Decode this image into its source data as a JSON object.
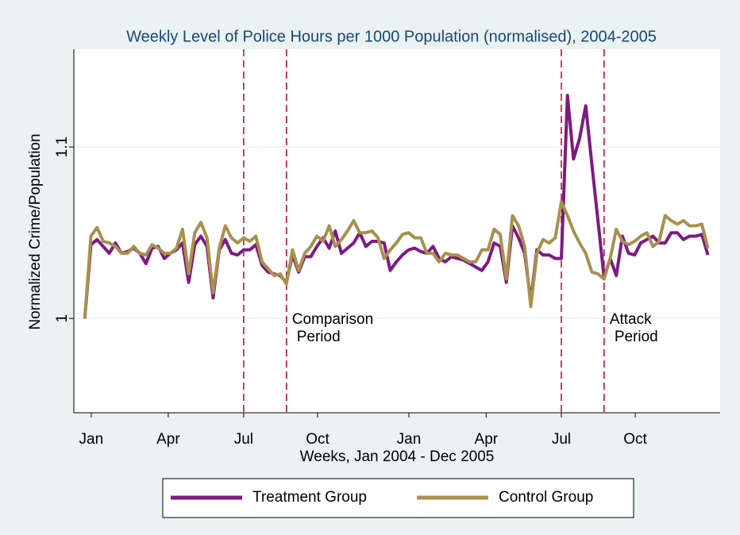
{
  "chart_data": {
    "type": "line",
    "title": "Weekly Level of Police Hours per 1000 Population (normalised), 2004-2005",
    "x_label": "Weeks, Jan 2004 - Dec 2005",
    "y_label": "Normalized Crime/Population",
    "x": [
      1,
      2,
      3,
      4,
      5,
      6,
      7,
      8,
      9,
      10,
      11,
      12,
      13,
      14,
      15,
      16,
      17,
      18,
      19,
      20,
      21,
      22,
      23,
      24,
      25,
      26,
      27,
      28,
      29,
      30,
      31,
      32,
      33,
      34,
      35,
      36,
      37,
      38,
      39,
      40,
      41,
      42,
      43,
      44,
      45,
      46,
      47,
      48,
      49,
      50,
      51,
      52,
      53,
      54,
      55,
      56,
      57,
      58,
      59,
      60,
      61,
      62,
      63,
      64,
      65,
      66,
      67,
      68,
      69,
      70,
      71,
      72,
      73,
      74,
      75,
      76,
      77,
      78,
      79,
      80,
      81,
      82,
      83,
      84,
      85,
      86,
      87,
      88,
      89,
      90,
      91,
      92,
      93,
      94,
      95,
      96,
      97,
      98,
      99,
      100,
      101,
      102,
      103
    ],
    "series": [
      {
        "name": "Treatment Group",
        "color": "#7d1a82",
        "values": [
          1.0,
          1.043,
          1.046,
          1.042,
          1.038,
          1.044,
          1.038,
          1.039,
          1.041,
          1.038,
          1.032,
          1.041,
          1.042,
          1.035,
          1.038,
          1.04,
          1.044,
          1.021,
          1.043,
          1.048,
          1.042,
          1.012,
          1.04,
          1.046,
          1.038,
          1.037,
          1.04,
          1.04,
          1.043,
          1.031,
          1.027,
          1.026,
          1.025,
          1.021,
          1.037,
          1.027,
          1.036,
          1.036,
          1.042,
          1.047,
          1.041,
          1.051,
          1.038,
          1.041,
          1.044,
          1.05,
          1.042,
          1.045,
          1.045,
          1.044,
          1.028,
          1.033,
          1.037,
          1.04,
          1.041,
          1.039,
          1.038,
          1.042,
          1.035,
          1.033,
          1.036,
          1.035,
          1.034,
          1.032,
          1.03,
          1.028,
          1.033,
          1.044,
          1.042,
          1.021,
          1.054,
          1.047,
          1.038,
          1.01,
          1.04,
          1.037,
          1.037,
          1.035,
          1.035,
          1.13,
          1.093,
          1.105,
          1.124,
          1.09,
          1.057,
          1.024,
          1.035,
          1.025,
          1.048,
          1.038,
          1.037,
          1.044,
          1.046,
          1.048,
          1.044,
          1.044,
          1.05,
          1.05,
          1.046,
          1.048,
          1.048,
          1.049,
          1.037
        ]
      },
      {
        "name": "Control Group",
        "color": "#a8914e",
        "values": [
          1.0,
          1.048,
          1.053,
          1.045,
          1.044,
          1.042,
          1.038,
          1.038,
          1.042,
          1.038,
          1.037,
          1.043,
          1.041,
          1.038,
          1.038,
          1.041,
          1.052,
          1.026,
          1.05,
          1.056,
          1.047,
          1.015,
          1.041,
          1.054,
          1.047,
          1.044,
          1.047,
          1.045,
          1.048,
          1.033,
          1.029,
          1.025,
          1.026,
          1.02,
          1.04,
          1.028,
          1.038,
          1.042,
          1.048,
          1.045,
          1.054,
          1.042,
          1.046,
          1.051,
          1.057,
          1.05,
          1.05,
          1.051,
          1.047,
          1.035,
          1.04,
          1.044,
          1.049,
          1.05,
          1.047,
          1.047,
          1.038,
          1.038,
          1.033,
          1.038,
          1.037,
          1.037,
          1.035,
          1.033,
          1.033,
          1.04,
          1.04,
          1.052,
          1.049,
          1.023,
          1.06,
          1.054,
          1.042,
          1.007,
          1.038,
          1.046,
          1.044,
          1.047,
          1.068,
          1.06,
          1.051,
          1.044,
          1.038,
          1.027,
          1.026,
          1.023,
          1.035,
          1.052,
          1.045,
          1.043,
          1.045,
          1.048,
          1.05,
          1.042,
          1.045,
          1.06,
          1.057,
          1.055,
          1.057,
          1.054,
          1.054,
          1.055,
          1.041
        ]
      }
    ],
    "xlim": [
      -0.8,
      105
    ],
    "ylim": [
      0.945,
      1.157
    ],
    "xticks": [
      {
        "value": 2.04,
        "label": "Jan"
      },
      {
        "value": 14.65,
        "label": "Apr"
      },
      {
        "value": 27,
        "label": "Jul"
      },
      {
        "value": 39.1,
        "label": "Oct"
      },
      {
        "value": 54.05,
        "label": "Jan"
      },
      {
        "value": 66.7,
        "label": "Apr"
      },
      {
        "value": 79,
        "label": "Jul"
      },
      {
        "value": 91.1,
        "label": "Oct"
      }
    ],
    "yticks": [
      1,
      1.1
    ],
    "grid": true,
    "periods": [
      {
        "label": [
          "Comparison",
          "Period"
        ],
        "start": 27,
        "end": 34
      },
      {
        "label": [
          "Attack",
          "Period"
        ],
        "start": 79,
        "end": 86
      }
    ],
    "period_color": "#c8102e",
    "legend": "bottom"
  }
}
